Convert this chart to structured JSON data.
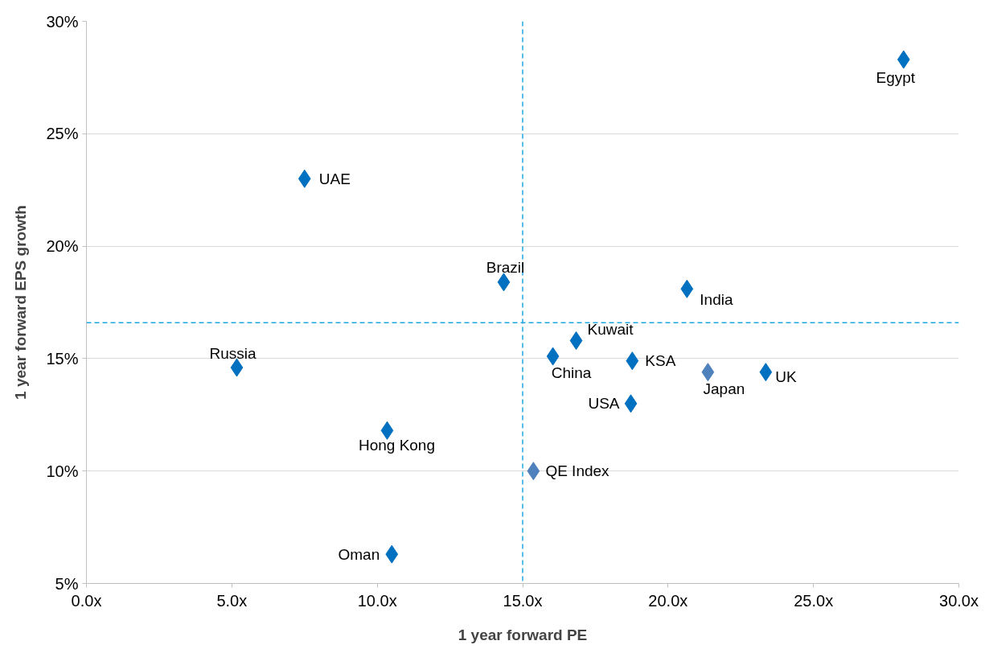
{
  "chart_data": {
    "type": "scatter",
    "xlabel": "1 year forward PE",
    "ylabel": "1 year forward EPS growth",
    "series": [
      {
        "x": [
          28.1,
          7.5,
          14.35,
          20.65,
          16.84,
          5.17,
          16.04,
          18.77,
          21.37,
          23.36,
          18.72,
          10.34,
          15.37,
          10.5
        ],
        "values": [
          28.3,
          23.0,
          18.4,
          18.1,
          15.8,
          14.6,
          15.1,
          14.9,
          14.4,
          14.4,
          13.0,
          11.8,
          10.0,
          6.3
        ],
        "colors": [
          "#0070c0",
          "#0070c0",
          "#0070c0",
          "#0070c0",
          "#0070c0",
          "#0070c0",
          "#0070c0",
          "#0070c0",
          "#4f81bd",
          "#0070c0",
          "#0070c0",
          "#0070c0",
          "#4f81bd",
          "#0070c0"
        ]
      }
    ],
    "annotations": [
      {
        "text": "Egypt",
        "x": 28.1,
        "y": 28.3
      },
      {
        "text": "UAE",
        "x": 7.5,
        "y": 23.0
      },
      {
        "text": "Brazil",
        "x": 14.35,
        "y": 18.4
      },
      {
        "text": "India",
        "x": 20.65,
        "y": 18.1
      },
      {
        "text": "Kuwait",
        "x": 16.84,
        "y": 15.8
      },
      {
        "text": "Russia",
        "x": 5.17,
        "y": 14.6
      },
      {
        "text": "China",
        "x": 16.04,
        "y": 15.1
      },
      {
        "text": "KSA",
        "x": 18.77,
        "y": 14.9
      },
      {
        "text": "Japan",
        "x": 21.37,
        "y": 14.4
      },
      {
        "text": "UK",
        "x": 23.36,
        "y": 14.4
      },
      {
        "text": "USA",
        "x": 18.72,
        "y": 13.0
      },
      {
        "text": "Hong Kong",
        "x": 10.34,
        "y": 11.8
      },
      {
        "text": "QE Index",
        "x": 15.37,
        "y": 10.0
      },
      {
        "text": "Oman",
        "x": 10.5,
        "y": 6.3
      }
    ],
    "marker": "diamond",
    "grid": "y",
    "xlim": [
      0,
      30
    ],
    "ylim": [
      5,
      30
    ],
    "xticks": [
      {
        "value": 0,
        "label": "0.0x"
      },
      {
        "value": 5,
        "label": "5.0x"
      },
      {
        "value": 10,
        "label": "10.0x"
      },
      {
        "value": 15,
        "label": "15.0x"
      },
      {
        "value": 20,
        "label": "20.0x"
      },
      {
        "value": 25,
        "label": "25.0x"
      },
      {
        "value": 30,
        "label": "30.0x"
      }
    ],
    "yticks": [
      {
        "value": 5,
        "label": "5%"
      },
      {
        "value": 10,
        "label": "10%"
      },
      {
        "value": 15,
        "label": "15%"
      },
      {
        "value": 20,
        "label": "20%"
      },
      {
        "value": 25,
        "label": "25%"
      },
      {
        "value": 30,
        "label": "30%"
      }
    ],
    "ref_lines": [
      {
        "axis": "x",
        "value": 15.0,
        "color": "#1fa8e0",
        "line_style": "dashed"
      },
      {
        "axis": "y",
        "value": 16.6,
        "color": "#1fa8e0",
        "line_style": "dashed"
      }
    ]
  }
}
